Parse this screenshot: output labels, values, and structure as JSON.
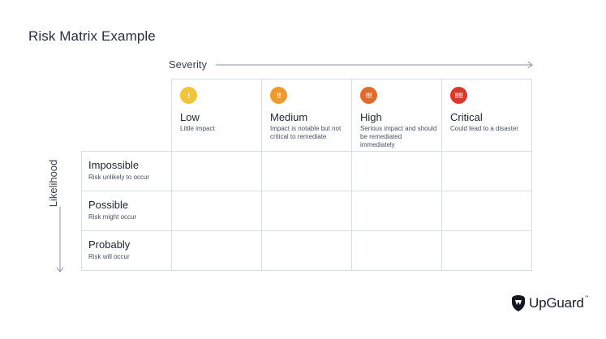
{
  "title": "Risk Matrix Example",
  "axes": {
    "severity_label": "Severity",
    "likelihood_label": "Likelihood"
  },
  "severity_levels": [
    {
      "icon": "!",
      "name": "Low",
      "description": "Little impact",
      "color": "#f2c43d"
    },
    {
      "icon": "!!",
      "name": "Medium",
      "description": "Impact is notable but not critical to remediate",
      "color": "#ee9a2e"
    },
    {
      "icon": "!!!",
      "name": "High",
      "description": "Serious impact and should be remediated immediately",
      "color": "#e06a2a"
    },
    {
      "icon": "!!!!",
      "name": "Critical",
      "description": "Could lead to a disaster",
      "color": "#d9392b"
    }
  ],
  "likelihood_levels": [
    {
      "name": "Impossible",
      "description": "Risk unlikely to occur"
    },
    {
      "name": "Possible",
      "description": "Risk might occur"
    },
    {
      "name": "Probably",
      "description": "Risk will occur"
    }
  ],
  "brand": {
    "name": "UpGuard",
    "trademark": "™",
    "icon": "shield-icon"
  },
  "colors": {
    "grid_line": "#d9dde6",
    "arrow": "#8a90a6"
  }
}
